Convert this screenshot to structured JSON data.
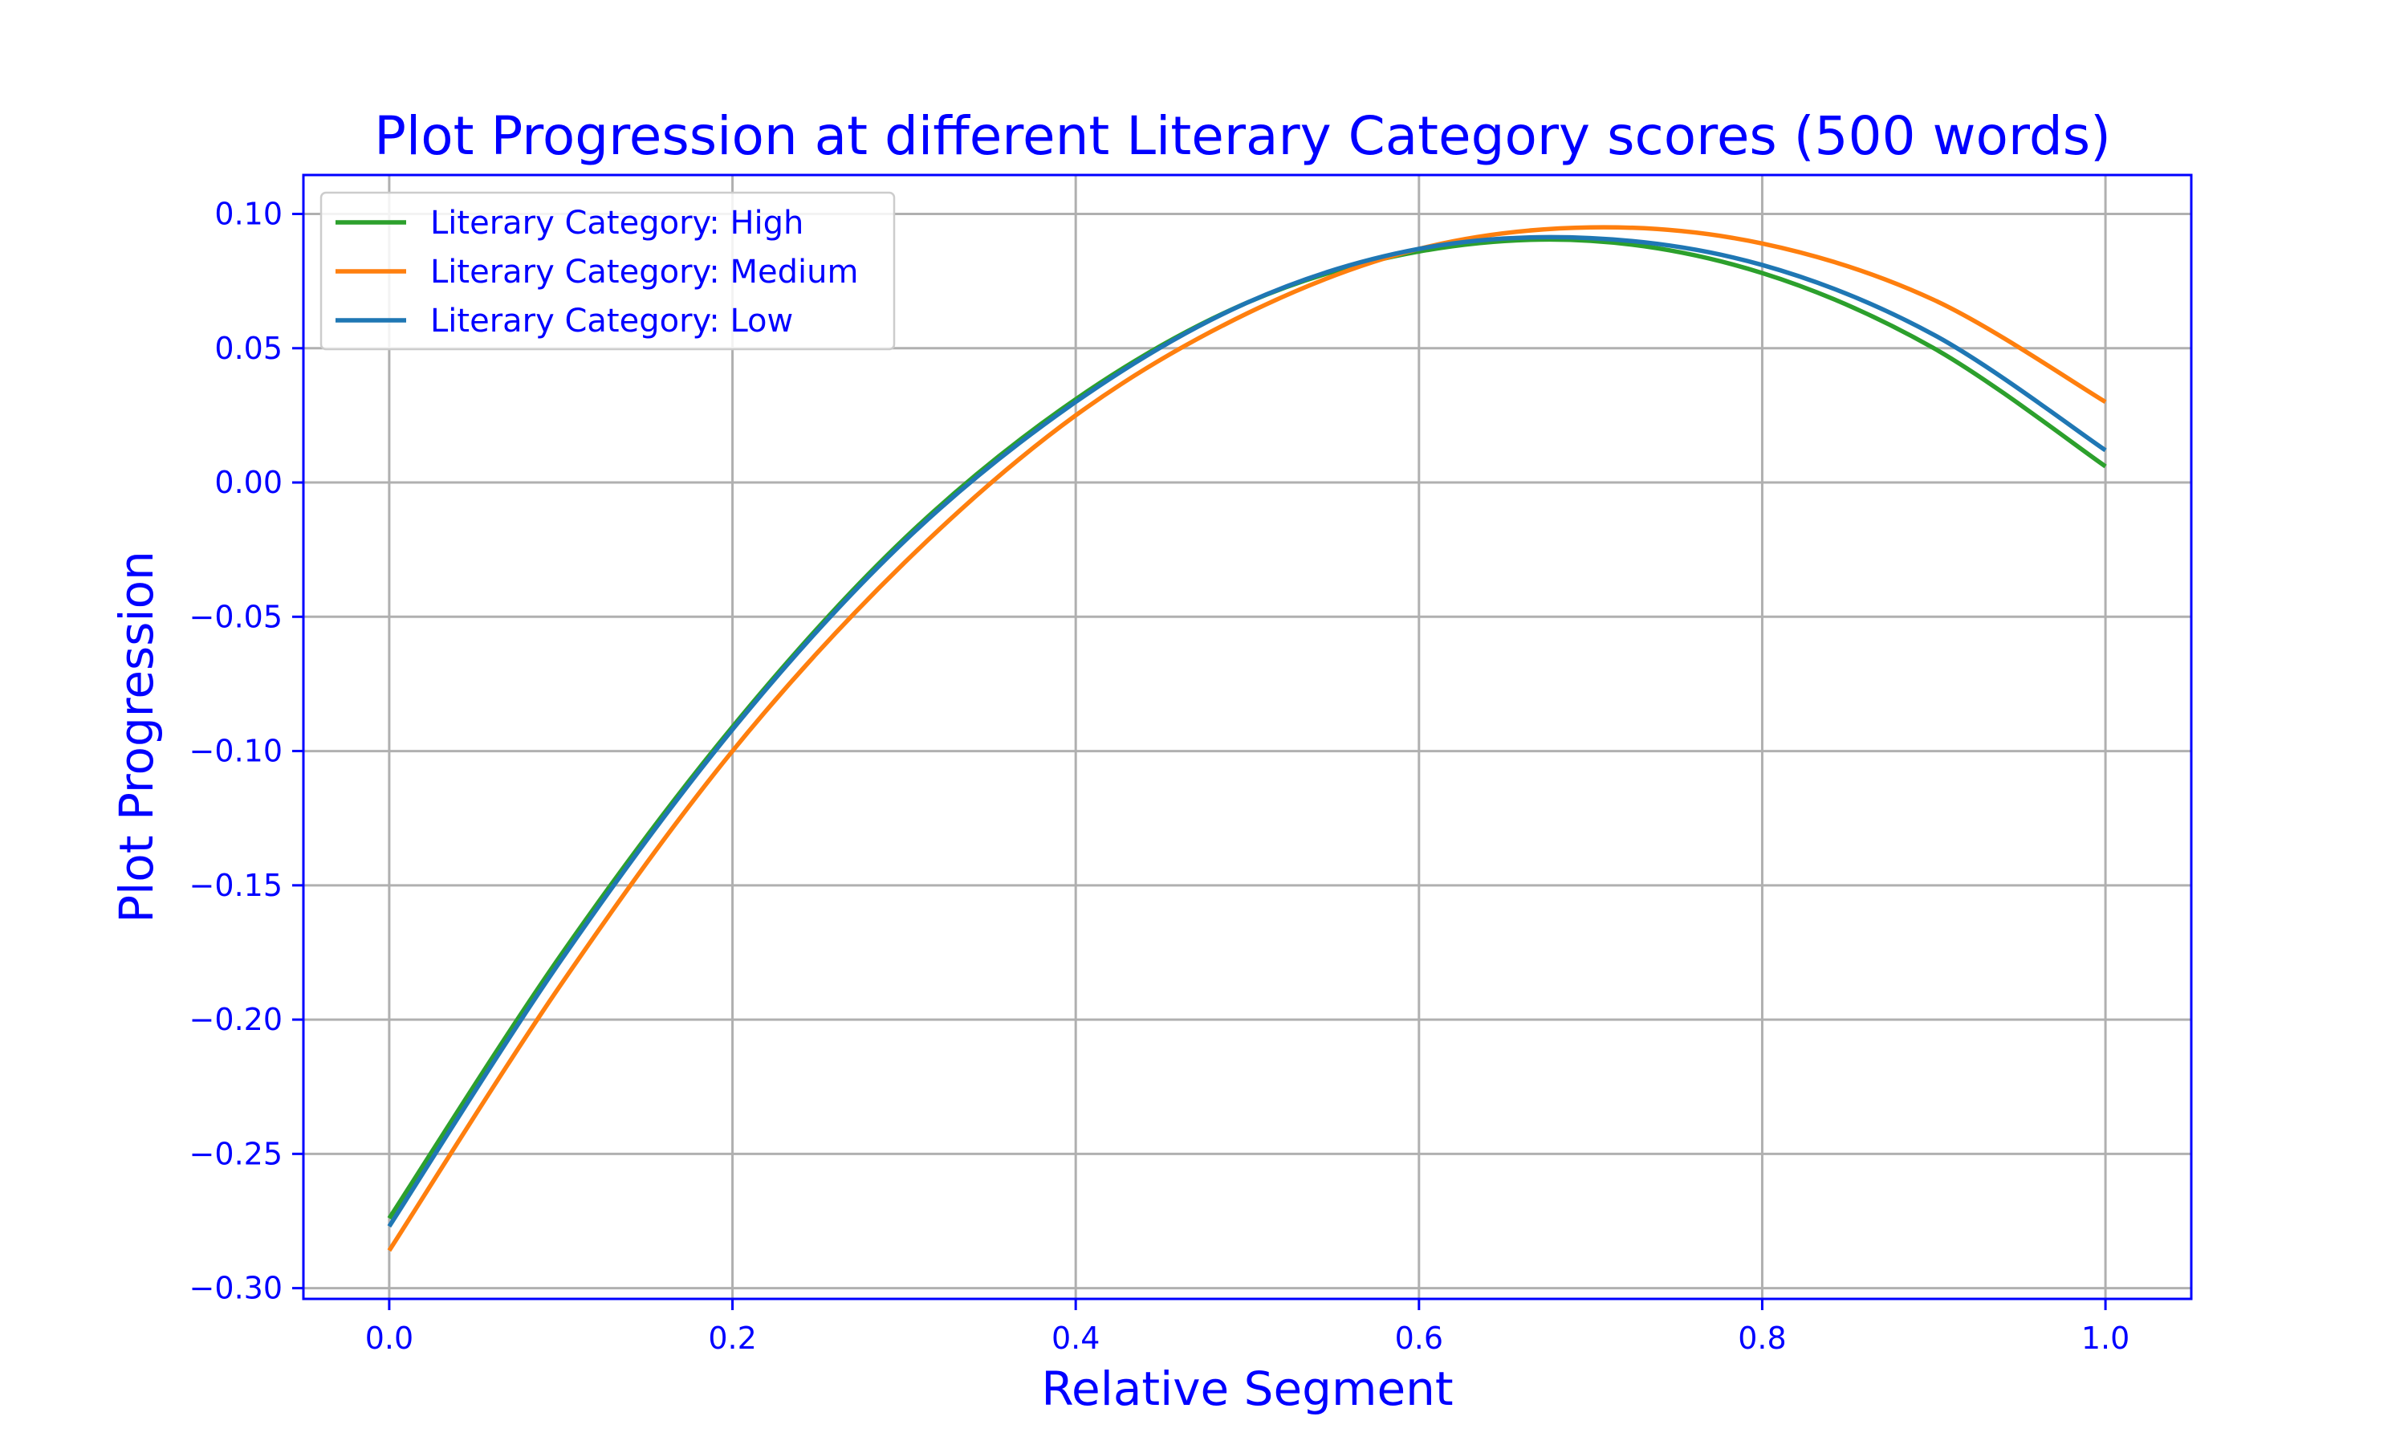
{
  "chart_data": {
    "type": "line",
    "title": "Plot Progression at different Literary Category scores (500 words)",
    "xlabel": "Relative Segment",
    "ylabel": "Plot Progression",
    "xlim": [
      -0.05,
      1.05
    ],
    "ylim": [
      -0.304,
      0.1145
    ],
    "xticks": [
      0.0,
      0.2,
      0.4,
      0.6,
      0.8,
      1.0
    ],
    "xtick_labels": [
      "0.0",
      "0.2",
      "0.4",
      "0.6",
      "0.8",
      "1.0"
    ],
    "yticks": [
      0.1,
      0.05,
      0.0,
      -0.05,
      -0.1,
      -0.15,
      -0.2,
      -0.25,
      -0.3
    ],
    "ytick_labels": [
      "0.10",
      "0.05",
      "0.00",
      "−0.05",
      "−0.10",
      "−0.15",
      "−0.20",
      "−0.25",
      "−0.30"
    ],
    "grid": true,
    "legend_position": "top-left",
    "x": [
      0.0,
      0.1,
      0.2,
      0.3,
      0.4,
      0.5,
      0.6,
      0.7,
      0.8,
      0.9,
      1.0
    ],
    "series": [
      {
        "name": "Literary Category: High",
        "color": "#2ca02c",
        "values": [
          -0.274,
          -0.176,
          -0.091,
          -0.021,
          0.031,
          0.067,
          0.086,
          0.09,
          0.078,
          0.05,
          0.006
        ]
      },
      {
        "name": "Literary Category: Medium",
        "color": "#ff7f0e",
        "values": [
          -0.286,
          -0.187,
          -0.1,
          -0.03,
          0.025,
          0.063,
          0.087,
          0.095,
          0.089,
          0.068,
          0.03
        ]
      },
      {
        "name": "Literary Category: Low",
        "color": "#1f77b4",
        "values": [
          -0.277,
          -0.178,
          -0.092,
          -0.022,
          0.03,
          0.067,
          0.087,
          0.091,
          0.081,
          0.055,
          0.012
        ]
      }
    ],
    "colors": {
      "text": "#0000ff",
      "axes": "#0000ff",
      "grid": "#b0b0b0"
    }
  }
}
